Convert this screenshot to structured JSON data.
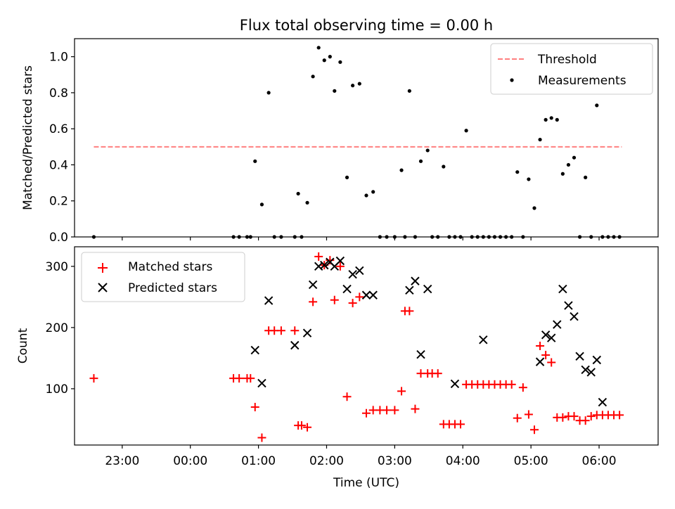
{
  "title": "Flux total observing time = 0.00 h",
  "chart_data": [
    {
      "type": "scatter",
      "title": "Flux total observing time = 0.00 h",
      "xlabel": "",
      "ylabel": "Matched/Predicted stars",
      "xlim": [
        "22:18",
        "06:52"
      ],
      "ylim": [
        0,
        1.1
      ],
      "yticks": [
        0.0,
        0.2,
        0.4,
        0.6,
        0.8,
        1.0
      ],
      "ytick_labels": [
        "0.0",
        "0.2",
        "0.4",
        "0.6",
        "0.8",
        "1.0"
      ],
      "legend_placement": "top-right",
      "legend": [
        "Threshold",
        "Measurements"
      ],
      "series": [
        {
          "name": "Threshold",
          "kind": "dashed-line",
          "color": "#ff7f7f",
          "x": [
            "22:35",
            "06:20"
          ],
          "y": [
            0.5,
            0.5
          ]
        },
        {
          "name": "Measurements",
          "kind": "dot",
          "color": "#000000",
          "x": [
            "22:35",
            "00:38",
            "00:43",
            "00:50",
            "00:53",
            "00:57",
            "01:03",
            "01:09",
            "01:14",
            "01:20",
            "01:32",
            "01:35",
            "01:38",
            "01:43",
            "01:48",
            "01:53",
            "01:58",
            "02:03",
            "02:07",
            "02:12",
            "02:18",
            "02:23",
            "02:29",
            "02:35",
            "02:41",
            "02:47",
            "02:53",
            "03:00",
            "03:06",
            "03:09",
            "03:13",
            "03:18",
            "03:23",
            "03:29",
            "03:33",
            "03:38",
            "03:43",
            "03:48",
            "03:53",
            "03:58",
            "04:03",
            "04:08",
            "04:13",
            "04:18",
            "04:23",
            "04:28",
            "04:33",
            "04:38",
            "04:43",
            "04:48",
            "04:53",
            "04:58",
            "05:03",
            "05:08",
            "05:13",
            "05:18",
            "05:23",
            "05:28",
            "05:33",
            "05:38",
            "05:43",
            "05:48",
            "05:53",
            "05:58",
            "06:03",
            "06:08",
            "06:13",
            "06:18"
          ],
          "y": [
            0,
            0,
            0,
            0,
            0,
            0.42,
            0.18,
            0.8,
            0,
            0,
            0,
            0.24,
            0,
            0.19,
            0.89,
            1.05,
            0.98,
            1.0,
            0.81,
            0.97,
            0.33,
            0.84,
            0.85,
            0.23,
            0.25,
            0,
            0,
            0,
            0.37,
            0,
            0.81,
            0,
            0.42,
            0.48,
            0,
            0,
            0.39,
            0,
            0,
            0,
            0.59,
            0,
            0,
            0,
            0,
            0,
            0,
            0,
            0,
            0.36,
            0,
            0.32,
            0.16,
            0.54,
            0.65,
            0.66,
            0.65,
            0.35,
            0.4,
            0.44,
            0,
            0.33,
            0,
            0.73,
            0,
            0,
            0,
            0
          ]
        }
      ]
    },
    {
      "type": "scatter",
      "xlabel": "Time (UTC)",
      "ylabel": "Count",
      "xlim": [
        "22:18",
        "06:52"
      ],
      "ylim": [
        8,
        332
      ],
      "xticks": [
        "23:00",
        "00:00",
        "01:00",
        "02:00",
        "03:00",
        "04:00",
        "05:00",
        "06:00"
      ],
      "yticks": [
        100,
        200,
        300
      ],
      "ytick_labels": [
        "100",
        "200",
        "300"
      ],
      "legend_placement": "top-left",
      "legend": [
        "Matched stars",
        "Predicted stars"
      ],
      "series": [
        {
          "name": "Matched stars",
          "marker": "+",
          "color": "#ff0000",
          "x": [
            "22:35",
            "00:38",
            "00:43",
            "00:50",
            "00:53",
            "00:57",
            "01:03",
            "01:09",
            "01:14",
            "01:20",
            "01:32",
            "01:35",
            "01:38",
            "01:43",
            "01:48",
            "01:53",
            "01:58",
            "02:03",
            "02:07",
            "02:12",
            "02:18",
            "02:23",
            "02:29",
            "02:35",
            "02:41",
            "02:47",
            "02:53",
            "03:00",
            "03:06",
            "03:09",
            "03:13",
            "03:18",
            "03:23",
            "03:29",
            "03:33",
            "03:38",
            "03:43",
            "03:48",
            "03:53",
            "03:58",
            "04:03",
            "04:08",
            "04:13",
            "04:18",
            "04:23",
            "04:28",
            "04:33",
            "04:38",
            "04:43",
            "04:48",
            "04:53",
            "04:58",
            "05:03",
            "05:08",
            "05:13",
            "05:18",
            "05:23",
            "05:28",
            "05:33",
            "05:38",
            "05:43",
            "05:48",
            "05:53",
            "05:58",
            "06:03",
            "06:08",
            "06:13",
            "06:18"
          ],
          "y": [
            117,
            117,
            117,
            117,
            117,
            70,
            20,
            195,
            195,
            195,
            195,
            40,
            40,
            37,
            242,
            316,
            302,
            310,
            245,
            300,
            87,
            240,
            250,
            60,
            65,
            65,
            65,
            65,
            96,
            227,
            227,
            67,
            125,
            125,
            125,
            125,
            42,
            42,
            42,
            42,
            107,
            107,
            107,
            107,
            107,
            107,
            107,
            107,
            107,
            52,
            102,
            58,
            33,
            170,
            155,
            143,
            53,
            53,
            55,
            55,
            48,
            48,
            55,
            57,
            57,
            57,
            57,
            57
          ]
        },
        {
          "name": "Predicted stars",
          "marker": "x",
          "color": "#000000",
          "x": [
            "00:57",
            "01:03",
            "01:09",
            "01:32",
            "01:43",
            "01:48",
            "01:53",
            "01:58",
            "02:03",
            "02:07",
            "02:12",
            "02:18",
            "02:23",
            "02:29",
            "02:35",
            "02:41",
            "03:13",
            "03:18",
            "03:23",
            "03:29",
            "03:53",
            "04:18",
            "05:08",
            "05:13",
            "05:18",
            "05:23",
            "05:28",
            "05:33",
            "05:38",
            "05:43",
            "05:48",
            "05:53",
            "05:58",
            "06:03"
          ],
          "y": [
            163,
            109,
            244,
            171,
            191,
            270,
            300,
            302,
            307,
            300,
            309,
            263,
            287,
            293,
            253,
            253,
            261,
            276,
            156,
            263,
            108,
            180,
            144,
            188,
            183,
            205,
            263,
            236,
            218,
            153,
            131,
            127,
            147,
            78
          ]
        }
      ]
    }
  ]
}
